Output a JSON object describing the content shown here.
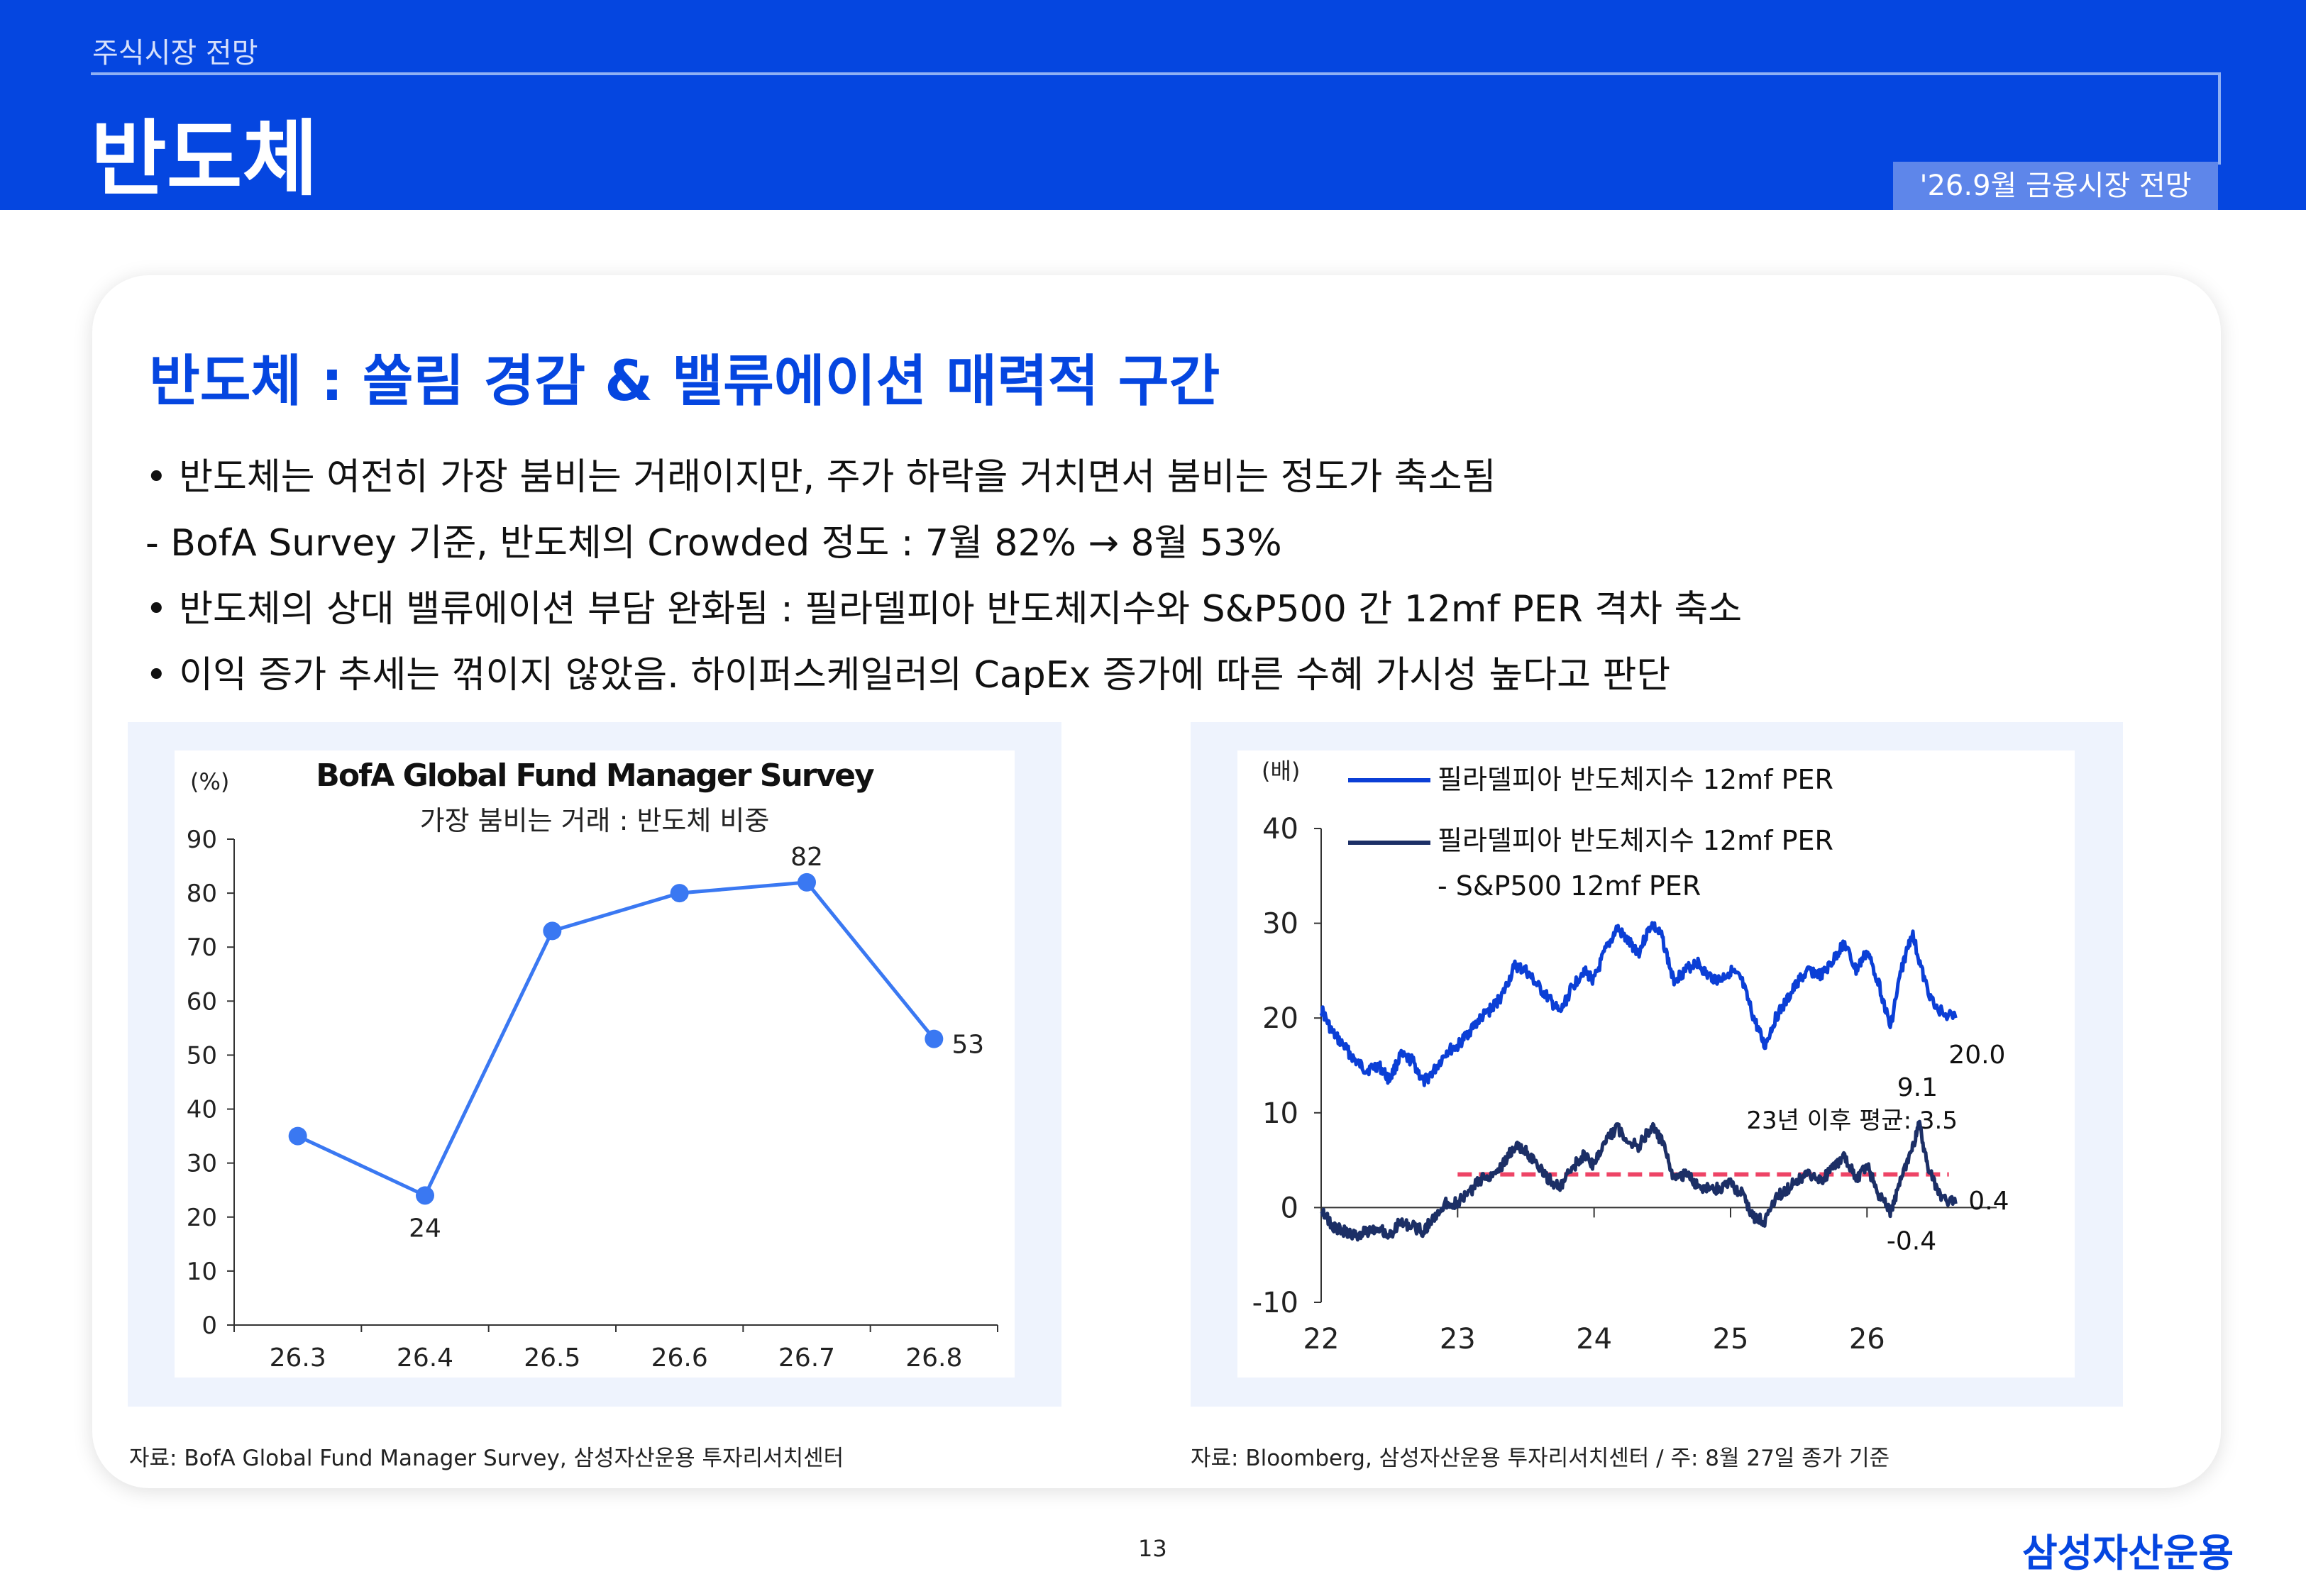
{
  "header": {
    "breadcrumb": "주식시장 전망",
    "title": "반도체",
    "tag": "'26.9월 금융시장 전망"
  },
  "heading": "반도체 : 쏠림 경감 & 밸류에이션 매력적 구간",
  "bullets": [
    "• 반도체는 여전히 가장 붐비는 거래이지만, 주가 하락을 거치면서 붐비는 정도가 축소됨",
    " - BofA Survey 기준, 반도체의 Crowded 정도 : 7월 82% → 8월 53%",
    "• 반도체의 상대 밸류에이션 부담 완화됨 : 필라델피아 반도체지수와 S&P500 간 12mf PER 격차 축소",
    "• 이익 증가 추세는 꺾이지 않았음. 하이퍼스케일러의 CapEx 증가에 따른 수혜 가시성 높다고 판단"
  ],
  "chart_data": [
    {
      "type": "line",
      "title": "BofA Global Fund Manager Survey",
      "subtitle": "가장 붐비는 거래 : 반도체 비중",
      "ylabel": "(%)",
      "categories": [
        "26.3",
        "26.4",
        "26.5",
        "26.6",
        "26.7",
        "26.8"
      ],
      "values": [
        35,
        24,
        73,
        80,
        82,
        53
      ],
      "data_labels": [
        "",
        "24",
        "",
        "",
        "82",
        "53"
      ],
      "ylim": [
        0,
        90
      ],
      "yticks": [
        "0",
        "10",
        "20",
        "30",
        "40",
        "50",
        "60",
        "70",
        "80",
        "90"
      ],
      "color": "#3a78f2",
      "grid": false
    },
    {
      "type": "line",
      "ylabel": "(배)",
      "xticks": [
        "22",
        "23",
        "24",
        "25",
        "26"
      ],
      "yticks": [
        "-10",
        "0",
        "10",
        "20",
        "30",
        "40"
      ],
      "ylim": [
        -10,
        40
      ],
      "legend_position": "top-left",
      "series": [
        {
          "name": "필라델피아 반도체지수 12mf PER",
          "color": "#0b3fd6",
          "points": [
            [
              2022.0,
              21.0
            ],
            [
              2022.08,
              18.5
            ],
            [
              2022.17,
              17.0
            ],
            [
              2022.25,
              15.5
            ],
            [
              2022.33,
              14.5
            ],
            [
              2022.42,
              15.0
            ],
            [
              2022.5,
              13.5
            ],
            [
              2022.58,
              16.0
            ],
            [
              2022.67,
              15.5
            ],
            [
              2022.75,
              13.2
            ],
            [
              2022.83,
              14.5
            ],
            [
              2022.92,
              16.5
            ],
            [
              2023.0,
              17.0
            ],
            [
              2023.08,
              18.5
            ],
            [
              2023.17,
              20.0
            ],
            [
              2023.25,
              21.0
            ],
            [
              2023.33,
              22.5
            ],
            [
              2023.42,
              25.5
            ],
            [
              2023.5,
              25.0
            ],
            [
              2023.58,
              23.5
            ],
            [
              2023.67,
              22.0
            ],
            [
              2023.75,
              20.5
            ],
            [
              2023.83,
              23.0
            ],
            [
              2023.92,
              25.0
            ],
            [
              2024.0,
              24.0
            ],
            [
              2024.08,
              27.0
            ],
            [
              2024.17,
              29.5
            ],
            [
              2024.25,
              28.0
            ],
            [
              2024.33,
              27.0
            ],
            [
              2024.42,
              30.0
            ],
            [
              2024.5,
              28.5
            ],
            [
              2024.58,
              24.0
            ],
            [
              2024.67,
              25.0
            ],
            [
              2024.75,
              26.0
            ],
            [
              2024.83,
              24.5
            ],
            [
              2024.92,
              24.0
            ],
            [
              2025.0,
              25.0
            ],
            [
              2025.08,
              24.0
            ],
            [
              2025.17,
              20.0
            ],
            [
              2025.25,
              17.0
            ],
            [
              2025.33,
              20.0
            ],
            [
              2025.42,
              22.0
            ],
            [
              2025.5,
              24.0
            ],
            [
              2025.58,
              25.0
            ],
            [
              2025.67,
              24.5
            ],
            [
              2025.75,
              26.0
            ],
            [
              2025.83,
              28.0
            ],
            [
              2025.92,
              25.0
            ],
            [
              2026.0,
              27.0
            ],
            [
              2026.08,
              24.0
            ],
            [
              2026.17,
              19.0
            ],
            [
              2026.25,
              25.0
            ],
            [
              2026.33,
              29.0
            ],
            [
              2026.42,
              24.0
            ],
            [
              2026.5,
              21.0
            ],
            [
              2026.65,
              20.0
            ]
          ],
          "end_label": "20.0"
        },
        {
          "name": "필라델피아 반도체지수 12mf PER - S&P500 12mf PER",
          "name_lines": [
            "필라델피아 반도체지수 12mf PER",
            "- S&P500 12mf PER"
          ],
          "color": "#1c2f66",
          "points": [
            [
              2022.0,
              0.0
            ],
            [
              2022.08,
              -2.0
            ],
            [
              2022.17,
              -2.5
            ],
            [
              2022.25,
              -3.0
            ],
            [
              2022.33,
              -2.5
            ],
            [
              2022.42,
              -2.0
            ],
            [
              2022.5,
              -3.0
            ],
            [
              2022.58,
              -1.5
            ],
            [
              2022.67,
              -2.0
            ],
            [
              2022.75,
              -2.5
            ],
            [
              2022.83,
              -1.0
            ],
            [
              2022.92,
              0.5
            ],
            [
              2023.0,
              0.5
            ],
            [
              2023.08,
              1.5
            ],
            [
              2023.17,
              3.0
            ],
            [
              2023.25,
              3.5
            ],
            [
              2023.33,
              4.5
            ],
            [
              2023.42,
              6.5
            ],
            [
              2023.5,
              6.0
            ],
            [
              2023.58,
              4.5
            ],
            [
              2023.67,
              3.0
            ],
            [
              2023.75,
              2.0
            ],
            [
              2023.83,
              4.0
            ],
            [
              2023.92,
              5.5
            ],
            [
              2024.0,
              4.5
            ],
            [
              2024.08,
              7.0
            ],
            [
              2024.17,
              8.5
            ],
            [
              2024.25,
              7.0
            ],
            [
              2024.33,
              6.5
            ],
            [
              2024.42,
              8.5
            ],
            [
              2024.5,
              7.0
            ],
            [
              2024.58,
              3.0
            ],
            [
              2024.67,
              3.5
            ],
            [
              2024.75,
              2.5
            ],
            [
              2024.83,
              2.0
            ],
            [
              2024.92,
              2.0
            ],
            [
              2025.0,
              2.5
            ],
            [
              2025.08,
              1.5
            ],
            [
              2025.17,
              -1.0
            ],
            [
              2025.25,
              -1.5
            ],
            [
              2025.33,
              1.0
            ],
            [
              2025.42,
              2.0
            ],
            [
              2025.5,
              3.0
            ],
            [
              2025.58,
              3.5
            ],
            [
              2025.67,
              3.0
            ],
            [
              2025.75,
              4.0
            ],
            [
              2025.83,
              5.5
            ],
            [
              2025.92,
              3.0
            ],
            [
              2026.0,
              4.5
            ],
            [
              2026.08,
              1.5
            ],
            [
              2026.17,
              -0.4
            ],
            [
              2026.25,
              3.0
            ],
            [
              2026.33,
              6.0
            ],
            [
              2026.38,
              9.1
            ],
            [
              2026.45,
              4.0
            ],
            [
              2026.55,
              1.0
            ],
            [
              2026.65,
              0.4
            ]
          ],
          "end_label": "0.4",
          "annotations": [
            {
              "x": 2026.38,
              "y": 9.1,
              "label": "9.1"
            },
            {
              "x": 2026.17,
              "y": -0.4,
              "label": "-0.4"
            }
          ]
        }
      ],
      "average_line": {
        "label": "23년 이후 평균: 3.5",
        "value": 3.5,
        "x_start": 2023.0,
        "x_end": 2026.6,
        "color": "#ee4466"
      }
    }
  ],
  "sources": {
    "left": "자료: BofA Global Fund Manager Survey, 삼성자산운용 투자리서치센터",
    "right": "자료: Bloomberg, 삼성자산운용 투자리서치센터 / 주: 8월 27일 종가 기준"
  },
  "footer": {
    "page_number": "13",
    "brand": "삼성자산운용"
  }
}
